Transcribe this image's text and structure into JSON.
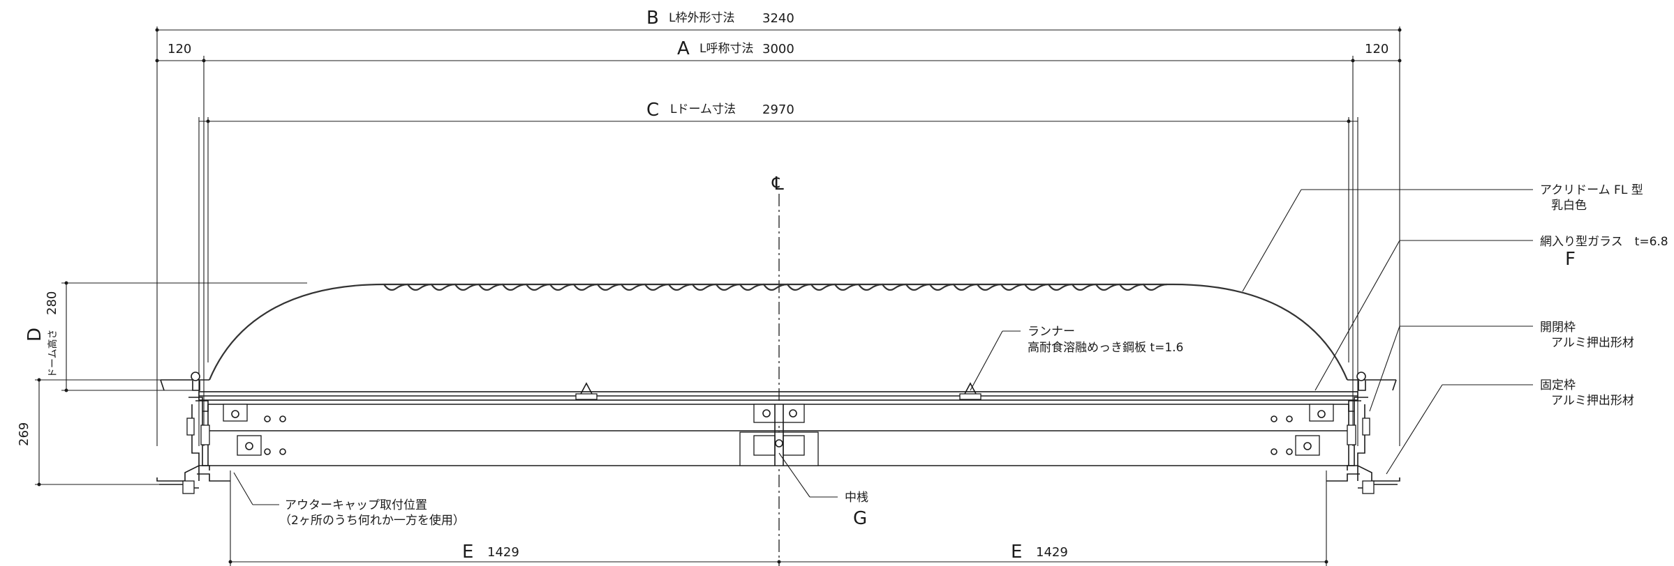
{
  "dimensions": {
    "B": {
      "letter": "B",
      "label": "L枠外形寸法",
      "value": "3240"
    },
    "A": {
      "letter": "A",
      "label": "L呼称寸法",
      "value": "3000"
    },
    "C": {
      "letter": "C",
      "label": "Lドーム寸法",
      "value": "2970"
    },
    "side_left": "120",
    "side_right": "120",
    "D": {
      "letter": "D",
      "label": "ドーム高さ",
      "value": "280"
    },
    "height": "269",
    "E_left": {
      "letter": "E",
      "value": "1429"
    },
    "E_right": {
      "letter": "E",
      "value": "1429"
    }
  },
  "centerline_symbol": "℄",
  "callouts": {
    "dome": {
      "line1": "アクリドーム FL 型",
      "line2": "乳白色"
    },
    "glass": {
      "line1": "網入り型ガラス　t=6.8",
      "letter": "F"
    },
    "open_frame": {
      "line1": "開閉枠",
      "line2": "アルミ押出形材"
    },
    "fixed_frame": {
      "line1": "固定枠",
      "line2": "アルミ押出形材"
    },
    "runner": {
      "line1": "ランナー",
      "line2": "高耐食溶融めっき鋼板 t=1.6"
    },
    "outer_cap": {
      "line1": "アウターキャップ取付位置",
      "line2": "（2ヶ所のうち何れか一方を使用）"
    },
    "mullion": {
      "line1": "中桟",
      "letter": "G"
    }
  }
}
